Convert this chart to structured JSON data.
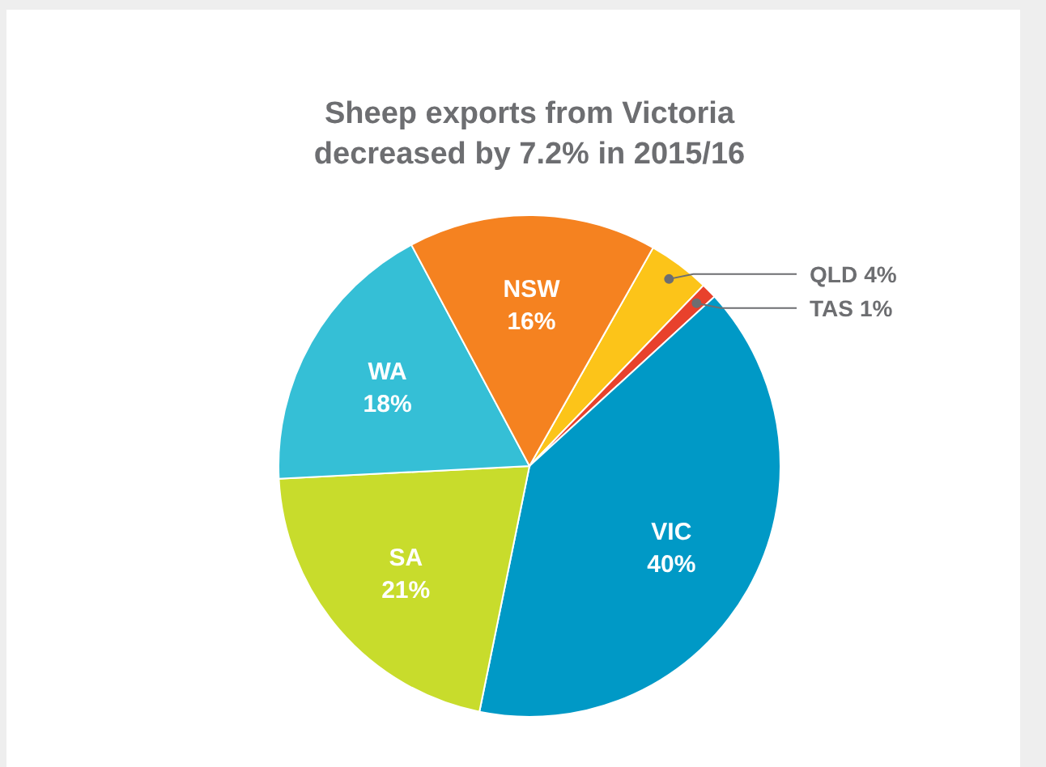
{
  "chart_data": {
    "type": "pie",
    "title": "Sheep exports from Victoria\ndecreased by 7.2% in 2015/16",
    "categories": [
      "QLD",
      "TAS",
      "VIC",
      "SA",
      "WA",
      "NSW"
    ],
    "values": [
      4,
      1,
      40,
      21,
      18,
      16
    ],
    "colors": [
      "#fcc419",
      "#e8412c",
      "#0099c6",
      "#c8dc2c",
      "#35bfd6",
      "#f58220"
    ],
    "value_labels": [
      "4%",
      "1%",
      "40%",
      "21%",
      "18%",
      "16%"
    ]
  }
}
